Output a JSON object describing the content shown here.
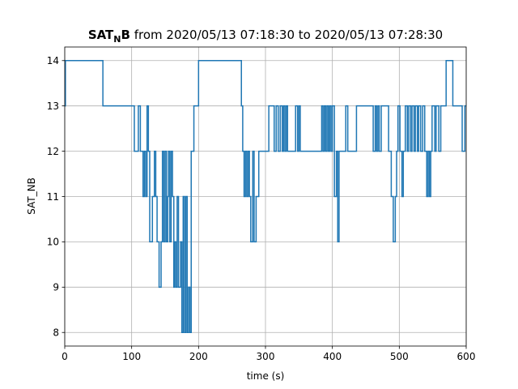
{
  "chart_data": {
    "type": "line",
    "drawstyle": "steps-post",
    "title": {
      "main": "SAT",
      "subscript": "N",
      "tail": "B",
      "rest": " from 2020/05/13 07:18:30 to 2020/05/13 07:28:30"
    },
    "xlabel": "time (s)",
    "ylabel": "SAT_NB",
    "xlim": [
      0,
      600
    ],
    "ylim": [
      7.7,
      14.3
    ],
    "xticks": [
      0,
      100,
      200,
      300,
      400,
      500,
      600
    ],
    "yticks": [
      8,
      9,
      10,
      11,
      12,
      13,
      14
    ],
    "grid": true,
    "series": [
      {
        "color": "#1f77b4",
        "points": [
          [
            0,
            13
          ],
          [
            1,
            14
          ],
          [
            57,
            13
          ],
          [
            104,
            12
          ],
          [
            110,
            13
          ],
          [
            113,
            12
          ],
          [
            117,
            11
          ],
          [
            119,
            12
          ],
          [
            121,
            11
          ],
          [
            123,
            13
          ],
          [
            125,
            12
          ],
          [
            127,
            10
          ],
          [
            131,
            11
          ],
          [
            134,
            12
          ],
          [
            136,
            11
          ],
          [
            138,
            10
          ],
          [
            141,
            9
          ],
          [
            144,
            10
          ],
          [
            146,
            12
          ],
          [
            148,
            10
          ],
          [
            150,
            12
          ],
          [
            152,
            10
          ],
          [
            154,
            11
          ],
          [
            155,
            12
          ],
          [
            157,
            10
          ],
          [
            159,
            12
          ],
          [
            161,
            11
          ],
          [
            163,
            9
          ],
          [
            164,
            10
          ],
          [
            166,
            9
          ],
          [
            168,
            11
          ],
          [
            170,
            9
          ],
          [
            173,
            10
          ],
          [
            175,
            8
          ],
          [
            177,
            11
          ],
          [
            179,
            8
          ],
          [
            181,
            11
          ],
          [
            183,
            8
          ],
          [
            185,
            9
          ],
          [
            187,
            8
          ],
          [
            189,
            12
          ],
          [
            193,
            13
          ],
          [
            200,
            14
          ],
          [
            264,
            13
          ],
          [
            266,
            12
          ],
          [
            268,
            11
          ],
          [
            270,
            12
          ],
          [
            272,
            11
          ],
          [
            274,
            12
          ],
          [
            276,
            11
          ],
          [
            278,
            10
          ],
          [
            281,
            12
          ],
          [
            283,
            10
          ],
          [
            286,
            11
          ],
          [
            290,
            12
          ],
          [
            305,
            13
          ],
          [
            313,
            12
          ],
          [
            316,
            13
          ],
          [
            319,
            12
          ],
          [
            322,
            13
          ],
          [
            325,
            12
          ],
          [
            327,
            13
          ],
          [
            329,
            12
          ],
          [
            331,
            13
          ],
          [
            333,
            12
          ],
          [
            345,
            13
          ],
          [
            348,
            12
          ],
          [
            350,
            13
          ],
          [
            352,
            12
          ],
          [
            384,
            13
          ],
          [
            386,
            12
          ],
          [
            388,
            13
          ],
          [
            390,
            12
          ],
          [
            392,
            13
          ],
          [
            394,
            12
          ],
          [
            396,
            13
          ],
          [
            398,
            12
          ],
          [
            400,
            13
          ],
          [
            403,
            11
          ],
          [
            406,
            12
          ],
          [
            408,
            10
          ],
          [
            410,
            12
          ],
          [
            420,
            13
          ],
          [
            423,
            12
          ],
          [
            436,
            13
          ],
          [
            461,
            12
          ],
          [
            464,
            13
          ],
          [
            466,
            12
          ],
          [
            468,
            13
          ],
          [
            470,
            12
          ],
          [
            473,
            13
          ],
          [
            484,
            12
          ],
          [
            488,
            11
          ],
          [
            491,
            10
          ],
          [
            494,
            11
          ],
          [
            496,
            12
          ],
          [
            498,
            13
          ],
          [
            501,
            12
          ],
          [
            504,
            11
          ],
          [
            506,
            12
          ],
          [
            509,
            13
          ],
          [
            512,
            12
          ],
          [
            514,
            13
          ],
          [
            517,
            12
          ],
          [
            519,
            13
          ],
          [
            522,
            12
          ],
          [
            524,
            13
          ],
          [
            527,
            12
          ],
          [
            529,
            13
          ],
          [
            532,
            12
          ],
          [
            535,
            13
          ],
          [
            538,
            12
          ],
          [
            541,
            11
          ],
          [
            543,
            12
          ],
          [
            545,
            11
          ],
          [
            547,
            12
          ],
          [
            549,
            13
          ],
          [
            553,
            12
          ],
          [
            555,
            13
          ],
          [
            559,
            12
          ],
          [
            562,
            13
          ],
          [
            570,
            14
          ],
          [
            580,
            13
          ],
          [
            594,
            12
          ],
          [
            598,
            13
          ],
          [
            600,
            13
          ]
        ]
      }
    ]
  }
}
